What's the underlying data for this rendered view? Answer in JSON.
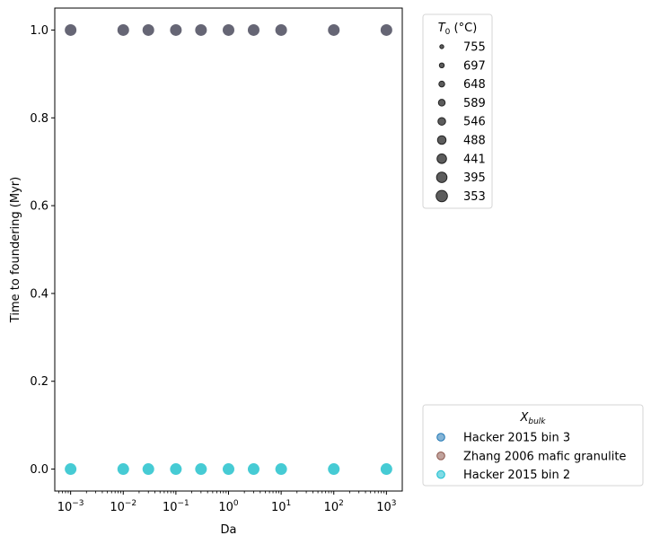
{
  "chart_data": {
    "type": "scatter",
    "xlabel": "Da",
    "ylabel": "Time to foundering (Myr)",
    "xscale": "log",
    "xlim": [
      0.0005,
      2000
    ],
    "ylim": [
      -0.05,
      1.05
    ],
    "x_tick_labels": [
      {
        "value": 0.001,
        "base": "10",
        "exp": "−3"
      },
      {
        "value": 0.01,
        "base": "10",
        "exp": "−2"
      },
      {
        "value": 0.1,
        "base": "10",
        "exp": "−1"
      },
      {
        "value": 1,
        "base": "10",
        "exp": "0"
      },
      {
        "value": 10,
        "base": "10",
        "exp": "1"
      },
      {
        "value": 100,
        "base": "10",
        "exp": "2"
      },
      {
        "value": 1000,
        "base": "10",
        "exp": "3"
      }
    ],
    "y_ticks": [
      0.0,
      0.2,
      0.4,
      0.6,
      0.8,
      1.0
    ],
    "y_tick_labels": [
      "0.0",
      "0.2",
      "0.4",
      "0.6",
      "0.8",
      "1.0"
    ],
    "series": [
      {
        "color": "#5e5e6e",
        "x": [
          0.001,
          0.01,
          0.03,
          0.1,
          0.3,
          1,
          3,
          10,
          100,
          1000
        ],
        "y": [
          1,
          1,
          1,
          1,
          1,
          1,
          1,
          1,
          1,
          1
        ]
      },
      {
        "color": "#3cc8d2",
        "x": [
          0.001,
          0.01,
          0.03,
          0.1,
          0.3,
          1,
          3,
          10,
          100,
          1000
        ],
        "y": [
          0,
          0,
          0,
          0,
          0,
          0,
          0,
          0,
          0,
          0
        ]
      }
    ],
    "legend_temperature": {
      "title_main": "T",
      "title_sub": "0",
      "title_rest": " (°C)",
      "placement": "outside-top-right",
      "entries": [
        "755",
        "697",
        "648",
        "589",
        "546",
        "488",
        "441",
        "395",
        "353"
      ]
    },
    "legend_composition": {
      "title_main": "X",
      "title_sub": "bulk",
      "placement": "outside-bottom-right",
      "entries": [
        {
          "label": "Hacker 2015 bin 3",
          "color": "#1f77b4"
        },
        {
          "label": "Zhang 2006 mafic granulite",
          "color": "#8c564b"
        },
        {
          "label": "Hacker 2015 bin 2",
          "color": "#17becf"
        }
      ]
    }
  }
}
